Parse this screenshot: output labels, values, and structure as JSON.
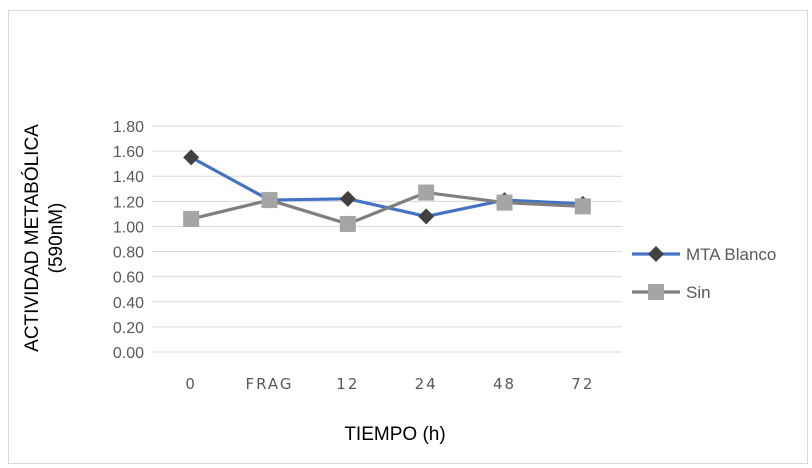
{
  "chart_data": {
    "type": "line",
    "categories": [
      "0",
      "FRAG",
      "12",
      "24",
      "48",
      "72"
    ],
    "series": [
      {
        "name": "MTA Blanco",
        "values": [
          1.55,
          1.21,
          1.22,
          1.08,
          1.21,
          1.18
        ],
        "color": "#4472C4",
        "marker": "diamond",
        "marker_color": "#404040"
      },
      {
        "name": "Sin",
        "values": [
          1.06,
          1.21,
          1.02,
          1.27,
          1.19,
          1.16
        ],
        "color": "#7F7F7F",
        "marker": "square",
        "marker_color": "#A5A5A5"
      }
    ],
    "yticks": [
      "0.00",
      "0.20",
      "0.40",
      "0.60",
      "0.80",
      "1.00",
      "1.20",
      "1.40",
      "1.60",
      "1.80"
    ],
    "ylim": [
      0,
      1.8
    ],
    "xlabel": "TIEMPO (h)",
    "ylabel_line1": "ACTIVIDAD METABÓLICA",
    "ylabel_line2": "(590nM)",
    "grid": true,
    "legend_position": "right"
  }
}
